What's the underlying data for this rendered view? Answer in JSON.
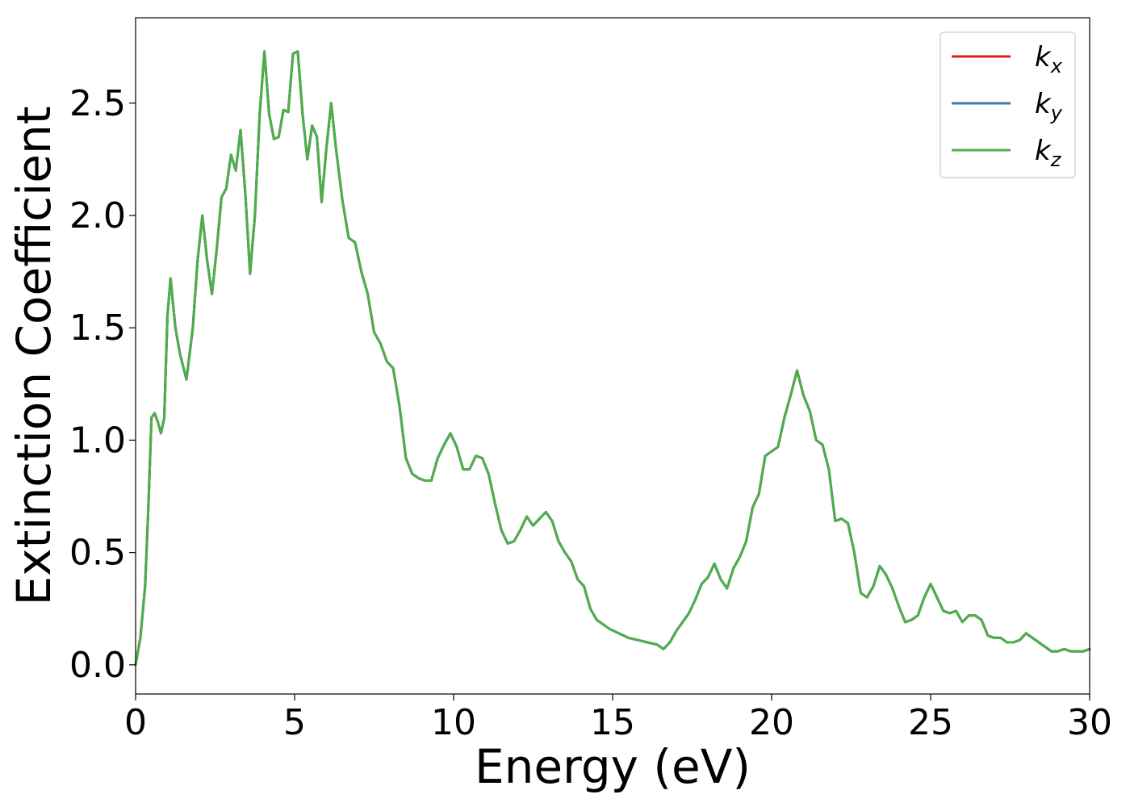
{
  "chart_data": {
    "type": "line",
    "title": "",
    "xlabel": "Energy (eV)",
    "ylabel": "Extinction Coefficient",
    "xlim": [
      0,
      30
    ],
    "ylim": [
      -0.13,
      2.88
    ],
    "xticks": [
      0,
      5,
      10,
      15,
      20,
      25,
      30
    ],
    "xtick_labels": [
      "0",
      "5",
      "10",
      "15",
      "20",
      "25",
      "30"
    ],
    "yticks": [
      0.0,
      0.5,
      1.0,
      1.5,
      2.0,
      2.5
    ],
    "ytick_labels": [
      "0.0",
      "0.5",
      "1.0",
      "1.5",
      "2.0",
      "2.5"
    ],
    "grid": false,
    "legend_position": "top-right",
    "series": [
      {
        "name": "k",
        "subscript": "x",
        "color": "#e41a1c"
      },
      {
        "name": "k",
        "subscript": "y",
        "color": "#377eb8"
      },
      {
        "name": "k",
        "subscript": "z",
        "color": "#4daf4a"
      }
    ],
    "x": [
      0,
      0.15,
      0.3,
      0.4,
      0.5,
      0.6,
      0.7,
      0.8,
      0.9,
      1.0,
      1.1,
      1.25,
      1.4,
      1.6,
      1.8,
      1.95,
      2.1,
      2.25,
      2.4,
      2.55,
      2.7,
      2.85,
      3.0,
      3.15,
      3.3,
      3.45,
      3.6,
      3.75,
      3.9,
      4.05,
      4.2,
      4.35,
      4.5,
      4.65,
      4.8,
      4.95,
      5.1,
      5.25,
      5.4,
      5.55,
      5.7,
      5.85,
      6.0,
      6.15,
      6.3,
      6.5,
      6.7,
      6.9,
      7.1,
      7.3,
      7.5,
      7.7,
      7.9,
      8.1,
      8.3,
      8.5,
      8.7,
      8.9,
      9.1,
      9.3,
      9.5,
      9.7,
      9.9,
      10.1,
      10.3,
      10.5,
      10.7,
      10.9,
      11.1,
      11.3,
      11.5,
      11.7,
      11.9,
      12.1,
      12.3,
      12.5,
      12.7,
      12.9,
      13.1,
      13.3,
      13.5,
      13.7,
      13.9,
      14.1,
      14.3,
      14.5,
      14.7,
      14.9,
      15.2,
      15.5,
      15.8,
      16.1,
      16.4,
      16.6,
      16.8,
      17.0,
      17.2,
      17.4,
      17.6,
      17.8,
      18.0,
      18.2,
      18.4,
      18.6,
      18.8,
      19.0,
      19.2,
      19.4,
      19.6,
      19.8,
      20.0,
      20.2,
      20.4,
      20.6,
      20.8,
      21.0,
      21.2,
      21.4,
      21.6,
      21.8,
      22.0,
      22.2,
      22.4,
      22.6,
      22.8,
      23.0,
      23.2,
      23.4,
      23.6,
      23.8,
      24.0,
      24.2,
      24.4,
      24.6,
      24.8,
      25.0,
      25.2,
      25.4,
      25.6,
      25.8,
      26.0,
      26.2,
      26.4,
      26.6,
      26.8,
      27.0,
      27.2,
      27.4,
      27.6,
      27.8,
      28.0,
      28.2,
      28.4,
      28.6,
      28.8,
      29.0,
      29.2,
      29.4,
      29.6,
      29.8,
      30.0
    ],
    "y": [
      0.0,
      0.12,
      0.35,
      0.7,
      1.1,
      1.12,
      1.08,
      1.03,
      1.1,
      1.55,
      1.72,
      1.5,
      1.38,
      1.27,
      1.5,
      1.8,
      2.0,
      1.8,
      1.65,
      1.85,
      2.08,
      2.12,
      2.27,
      2.2,
      2.38,
      2.1,
      1.74,
      2.0,
      2.45,
      2.73,
      2.45,
      2.34,
      2.35,
      2.47,
      2.46,
      2.72,
      2.73,
      2.45,
      2.25,
      2.4,
      2.35,
      2.06,
      2.3,
      2.5,
      2.3,
      2.07,
      1.9,
      1.88,
      1.75,
      1.65,
      1.48,
      1.43,
      1.35,
      1.32,
      1.15,
      0.92,
      0.85,
      0.83,
      0.82,
      0.82,
      0.92,
      0.98,
      1.03,
      0.97,
      0.87,
      0.87,
      0.93,
      0.92,
      0.85,
      0.72,
      0.6,
      0.54,
      0.55,
      0.6,
      0.66,
      0.62,
      0.65,
      0.68,
      0.64,
      0.55,
      0.5,
      0.46,
      0.38,
      0.35,
      0.25,
      0.2,
      0.18,
      0.16,
      0.14,
      0.12,
      0.11,
      0.1,
      0.09,
      0.07,
      0.1,
      0.15,
      0.19,
      0.23,
      0.29,
      0.36,
      0.39,
      0.45,
      0.38,
      0.34,
      0.43,
      0.48,
      0.55,
      0.7,
      0.76,
      0.93,
      0.95,
      0.97,
      1.1,
      1.2,
      1.31,
      1.2,
      1.13,
      1.0,
      0.98,
      0.87,
      0.64,
      0.65,
      0.63,
      0.5,
      0.32,
      0.3,
      0.35,
      0.44,
      0.4,
      0.34,
      0.26,
      0.19,
      0.2,
      0.22,
      0.3,
      0.36,
      0.3,
      0.24,
      0.23,
      0.24,
      0.19,
      0.22,
      0.22,
      0.2,
      0.13,
      0.12,
      0.12,
      0.1,
      0.1,
      0.11,
      0.14,
      0.12,
      0.1,
      0.08,
      0.06,
      0.06,
      0.07,
      0.06,
      0.06,
      0.06,
      0.07
    ]
  }
}
